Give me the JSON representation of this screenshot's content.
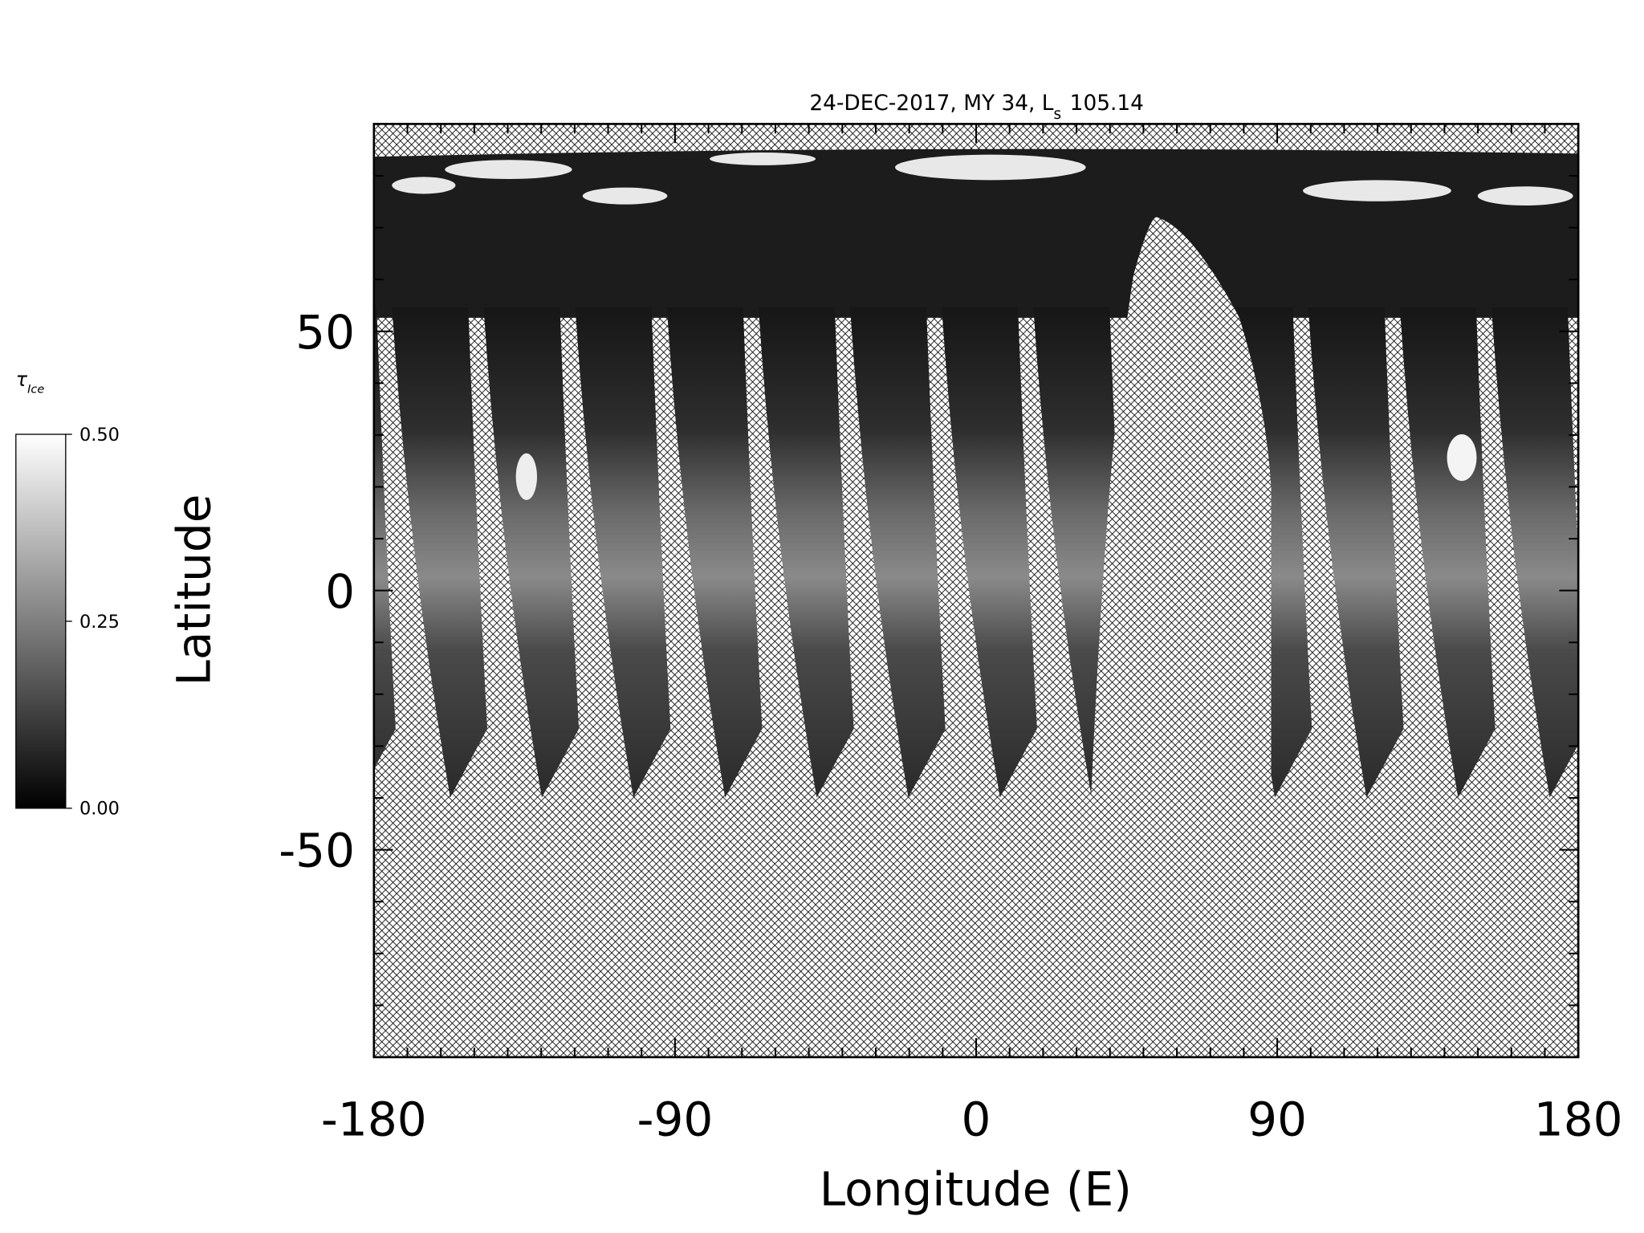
{
  "chart_data": {
    "type": "map",
    "title": "24-DEC-2017, MY 34,  L",
    "title_subscript": "s",
    "title_suffix": 105.14,
    "xlabel": "Longitude (E)",
    "ylabel": "Latitude",
    "xlim": [
      -180,
      180
    ],
    "ylim": [
      -90,
      90
    ],
    "xticks": [
      -180,
      -90,
      0,
      90,
      180
    ],
    "yticks": [
      -50,
      0,
      50
    ],
    "xminorticks": [
      -170,
      -160,
      -150,
      -140,
      -130,
      -120,
      -110,
      -100,
      -80,
      -70,
      -60,
      -50,
      -40,
      -30,
      -20,
      -10,
      10,
      20,
      30,
      40,
      50,
      60,
      70,
      80,
      100,
      110,
      120,
      130,
      140,
      150,
      160,
      170
    ],
    "yminorticks": [
      -80,
      -70,
      -60,
      -40,
      -30,
      -20,
      -10,
      10,
      20,
      30,
      40,
      60,
      70,
      80
    ],
    "colorbar": {
      "label": "τ",
      "label_subscript": "Ice",
      "lim": [
        0,
        0.5
      ],
      "ticks": [
        {
          "value": 0,
          "label": "0.00"
        },
        {
          "value": 0.25,
          "label": "0.25"
        },
        {
          "value": 0.5,
          "label": "0.50"
        }
      ],
      "colormap": [
        "#000000",
        "#ffffff"
      ]
    }
  }
}
